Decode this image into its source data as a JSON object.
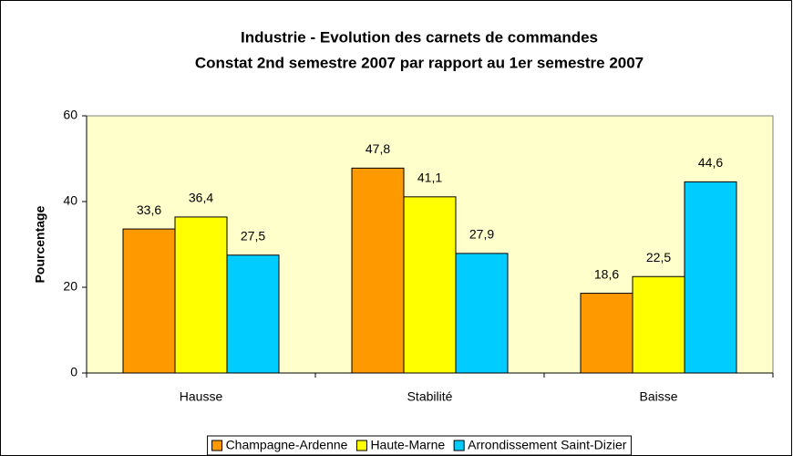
{
  "chart_data": {
    "type": "bar",
    "title": [
      "Industrie - Evolution des carnets de commandes",
      "Constat 2nd semestre 2007 par rapport au 1er semestre 2007"
    ],
    "y_label": "Pourcentage",
    "categories": [
      "Hausse",
      "Stabilité",
      "Baisse"
    ],
    "series": [
      {
        "name": "Champagne-Ardenne",
        "color": "#ff9900",
        "values": [
          33.6,
          47.8,
          18.6
        ],
        "value_labels": [
          "33,6",
          "47,8",
          "18,6"
        ]
      },
      {
        "name": "Haute-Marne",
        "color": "#ffff00",
        "values": [
          36.4,
          41.1,
          22.5
        ],
        "value_labels": [
          "36,4",
          "41,1",
          "22,5"
        ]
      },
      {
        "name": "Arrondissement Saint-Dizier",
        "color": "#00ccff",
        "values": [
          27.5,
          27.9,
          44.6
        ],
        "value_labels": [
          "27,5",
          "27,9",
          "44,6"
        ]
      }
    ],
    "ylim": [
      0,
      60
    ],
    "yticks": [
      0,
      20,
      40,
      60
    ],
    "grid": false,
    "legend": "bottom",
    "plot_background": "#ffffcc"
  }
}
